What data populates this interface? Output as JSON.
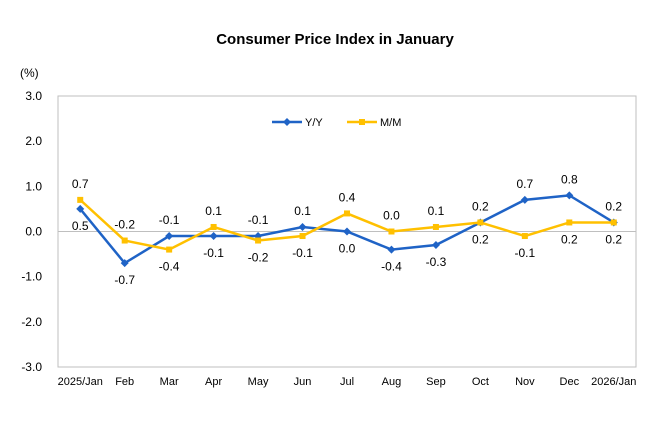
{
  "chart_data": {
    "type": "line",
    "title": "Consumer Price Index in January",
    "ylabel": "(%)",
    "xlabel": "",
    "ylim": [
      -3.0,
      3.0
    ],
    "yticks": [
      "3.0",
      "2.0",
      "1.0",
      "0.0",
      "-1.0",
      "-2.0",
      "-3.0"
    ],
    "grid": false,
    "legend_position": "top-center",
    "categories": [
      "2025/Jan",
      "Feb",
      "Mar",
      "Apr",
      "May",
      "Jun",
      "Jul",
      "Aug",
      "Sep",
      "Oct",
      "Nov",
      "Dec",
      "2026/Jan"
    ],
    "series": [
      {
        "name": "Y/Y",
        "color": "#1F63C6",
        "marker": "diamond",
        "values": [
          0.5,
          -0.7,
          -0.1,
          -0.1,
          -0.1,
          0.1,
          0.0,
          -0.4,
          -0.3,
          0.2,
          0.7,
          0.8,
          0.2
        ]
      },
      {
        "name": "M/M",
        "color": "#FFC000",
        "marker": "square",
        "values": [
          0.7,
          -0.2,
          -0.4,
          0.1,
          -0.2,
          -0.1,
          0.4,
          0.0,
          0.1,
          0.2,
          -0.1,
          0.2,
          0.2
        ]
      }
    ]
  }
}
